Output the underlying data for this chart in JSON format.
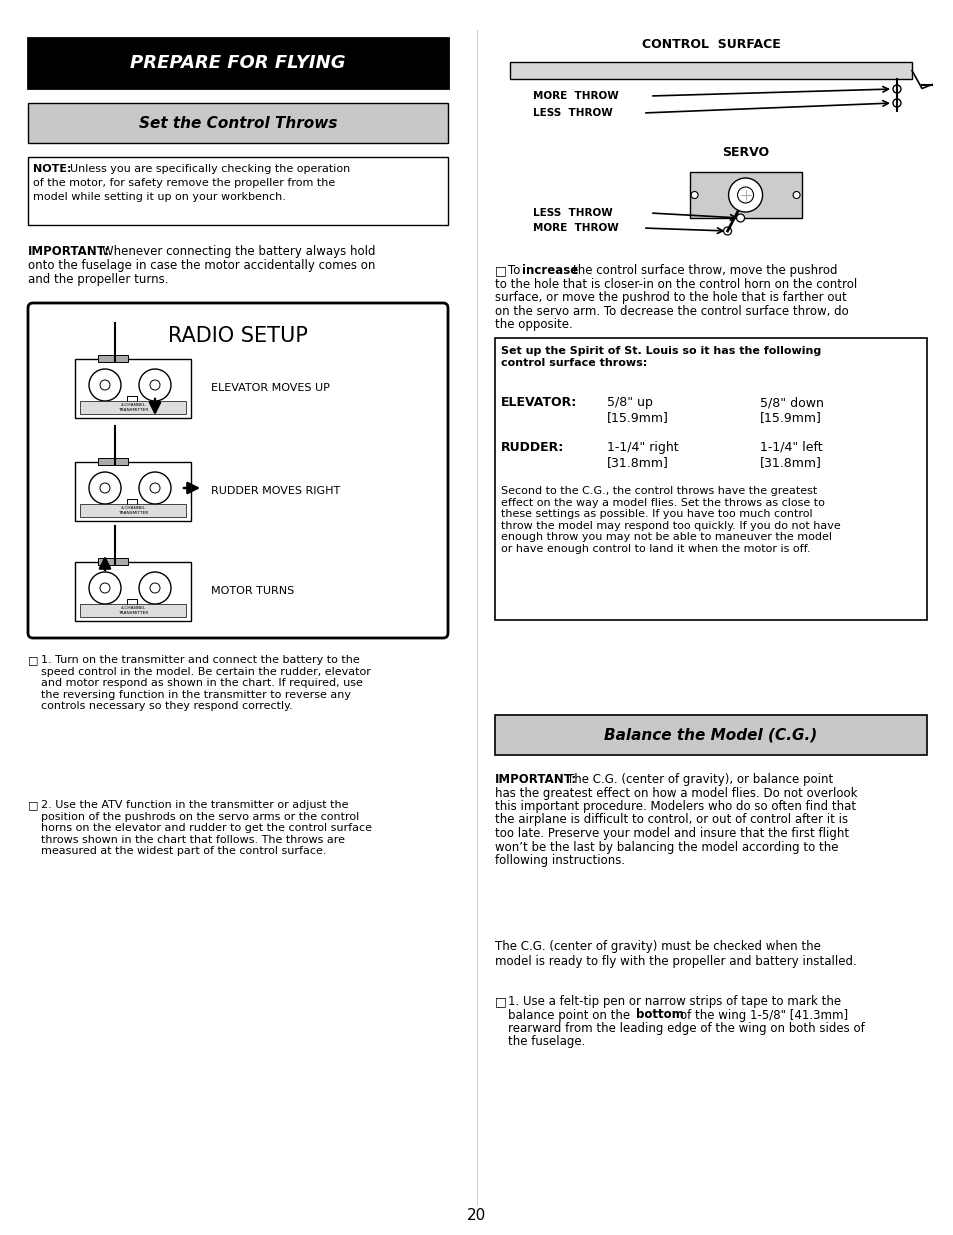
{
  "page_number": "20",
  "bg_color": "#ffffff",
  "left_column": {
    "header_black_box": {
      "text": "PREPARE FOR FLYING",
      "bg": "#000000",
      "fg": "#ffffff"
    },
    "subheader_gray_box": {
      "text": "Set the Control Throws",
      "bg": "#cccccc",
      "fg": "#000000"
    },
    "note_box": {
      "note_bold": "NOTE:",
      "note_rest": " Unless you are specifically checking the operation\nof the motor, for safety remove the propeller from the\nmodel while setting it up on your workbench."
    },
    "important_bold": "IMPORTANT:",
    "important_rest": " Whenever connecting the battery always hold\nonto the fuselage in case the motor accidentally comes on\nand the propeller turns.",
    "radio_setup_box": {
      "title": "RADIO SETUP",
      "labels": [
        "ELEVATOR MOVES UP",
        "RUDDER MOVES RIGHT",
        "MOTOR TURNS"
      ]
    },
    "bullet1": "1. Turn on the transmitter and connect the battery to the\nspeed control in the model. Be certain the rudder, elevator\nand motor respond as shown in the chart. If required, use\nthe reversing function in the transmitter to reverse any\ncontrols necessary so they respond correctly.",
    "bullet2": "2. Use the ATV function in the transmitter or adjust the\nposition of the pushrods on the servo arms or the control\nhorns on the elevator and rudder to get the control surface\nthrows shown in the chart that follows. The throws are\nmeasured at the widest part of the control surface."
  },
  "right_column": {
    "control_surface_label": "CONTROL  SURFACE",
    "more_throw_label": "MORE  THROW",
    "less_throw_label_top": "LESS  THROW",
    "servo_label": "SERVO",
    "less_throw_label_bottom": "LESS  THROW",
    "more_throw_label_bottom": "MORE  THROW",
    "throw_bold": "increase",
    "throw_pre": "To ",
    "throw_post": " the control surface throw, move the pushrod\nto the hole that is closer-in on the control horn on the control\nsurface, or move the pushrod to the hole that is farther out\non the servo arm. To decrease the control surface throw, do\nthe opposite.",
    "setup_box": {
      "text_bold": "Set up the Spirit of St. Louis so it has the following\ncontrol surface throws:",
      "elevator_label": "ELEVATOR:",
      "elevator_val1": "5/8\" up",
      "elevator_sub1": "[15.9mm]",
      "elevator_val2": "5/8\" down",
      "elevator_sub2": "[15.9mm]",
      "rudder_label": "RUDDER:",
      "rudder_val1": "1-1/4\" right",
      "rudder_sub1": "[31.8mm]",
      "rudder_val2": "1-1/4\" left",
      "rudder_sub2": "[31.8mm]",
      "paragraph": "Second to the C.G., the control throws have the greatest\neffect on the way a model flies. Set the throws as close to\nthese settings as possible. If you have too much control\nthrow the model may respond too quickly. If you do not have\nenough throw you may not be able to maneuver the model\nor have enough control to land it when the motor is off."
    },
    "balance_header": {
      "text": "Balance the Model (C.G.)",
      "bg": "#cccccc"
    },
    "important_cg_bold": "IMPORTANT:",
    "important_cg_rest": " The C.G. (center of gravity), or balance point\nhas the greatest effect on how a model flies. Do not overlook\nthis important procedure. Modelers who do so often find that\nthe airplane is difficult to control, or out of control after it is\ntoo late. Preserve your model and insure that the first flight\nwon’t be the last by balancing the model according to the\nfollowing instructions.",
    "cg_para2": "The C.G. (center of gravity) must be checked when the\nmodel is ready to fly with the propeller and battery installed.",
    "cg_step1_pre": "1. Use a felt-tip pen or narrow strips of tape to mark the\nbalance point on the ",
    "cg_step1_bold": "bottom",
    "cg_step1_post": " of the wing 1-5/8\" [41.3mm]\nrearward from the leading edge of the wing on both sides of\nthe fuselage."
  }
}
